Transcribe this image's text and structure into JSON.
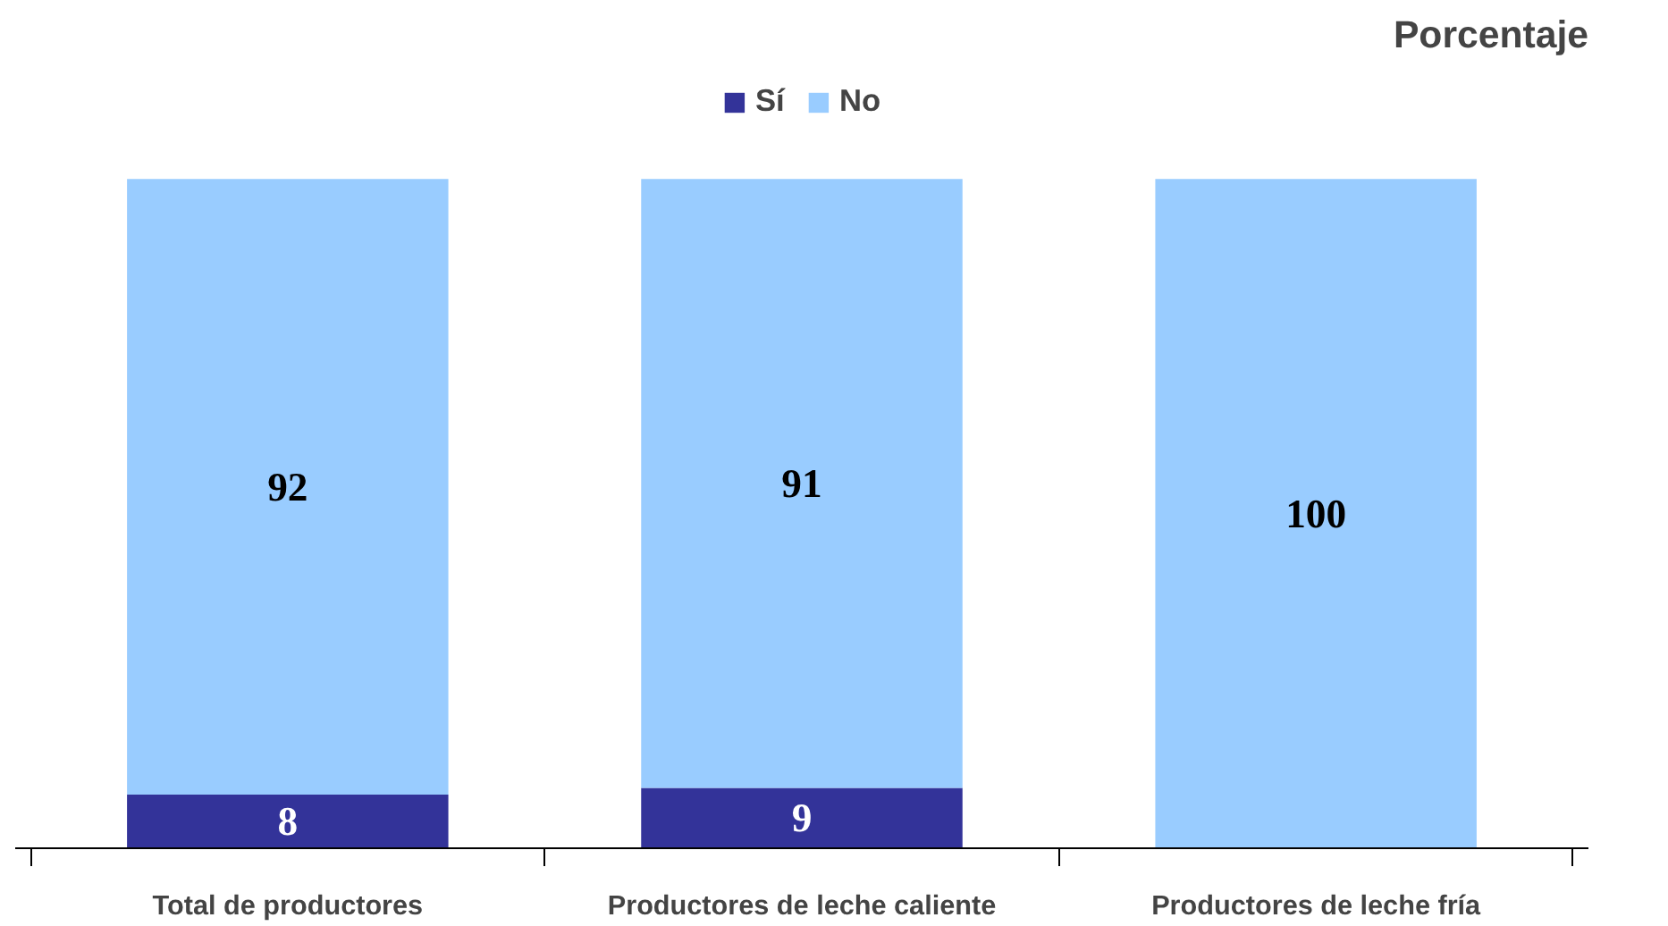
{
  "chart_data": {
    "type": "bar",
    "title": "Porcentaje",
    "categories": [
      "Total de productores",
      "Productores de leche caliente",
      "Productores de leche fría"
    ],
    "stacked": true,
    "data_labels": true,
    "legend": "top",
    "grid": false,
    "series": [
      {
        "name": "Sí",
        "color": "#333399",
        "values": [
          8,
          9,
          null
        ]
      },
      {
        "name": "No",
        "color": "#99ccff",
        "values": [
          92,
          91,
          100
        ]
      }
    ]
  }
}
